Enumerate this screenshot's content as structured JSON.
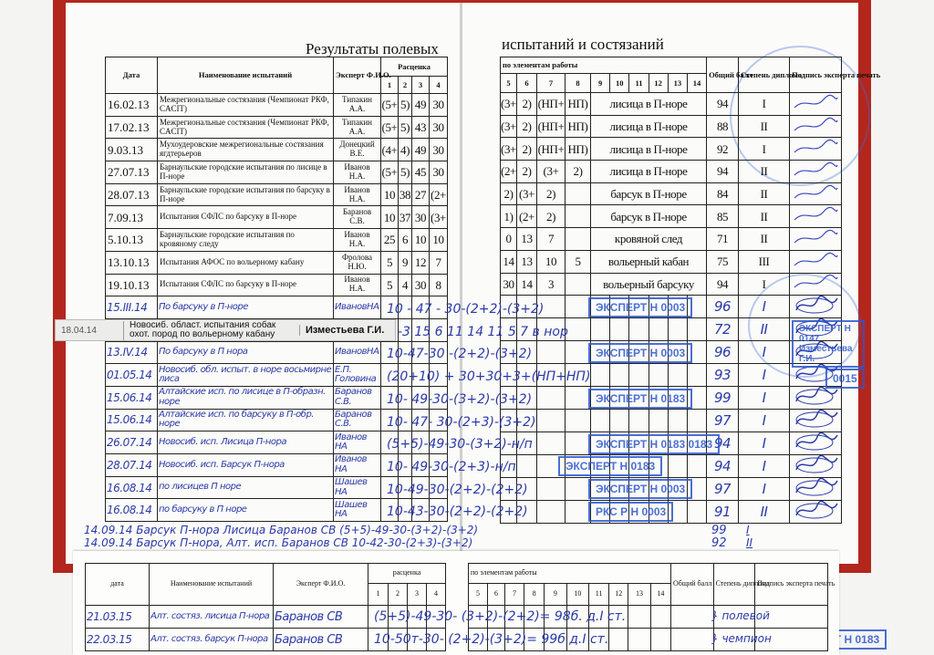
{
  "left_title": "Результаты полевых",
  "right_title": "испытаний и состязаний",
  "left_headers": {
    "date": "Дата",
    "name": "Наименование испытаний",
    "expert": "Эксперт Ф.И.О.",
    "rating": "Расценка",
    "cols": [
      "1",
      "2",
      "3",
      "4"
    ]
  },
  "right_headers": {
    "elements": "по элементам работы",
    "cols": [
      "5",
      "6",
      "7",
      "8",
      "9",
      "10",
      "11",
      "12",
      "13",
      "14"
    ],
    "total": "Общий балл",
    "diploma": "Степень диплома",
    "signature": "Подпись эксперта печать"
  },
  "printed_rows": [
    {
      "date": "16.02.13",
      "name": "Межрегиональные состязания (Чемпионат РКФ, CACIT)",
      "expert": "Типакин А.А.",
      "r": [
        "(5+",
        "5)",
        "49",
        "30"
      ],
      "e": [
        "(3+",
        "2)",
        "(НП+",
        "НП)"
      ],
      "work": "лисица в П-норе",
      "total": "94",
      "diploma": "I"
    },
    {
      "date": "17.02.13",
      "name": "Межрегиональные состязания (Чемпионат РКФ, CACIT)",
      "expert": "Типакин А.А.",
      "r": [
        "(5+",
        "5)",
        "43",
        "30"
      ],
      "e": [
        "(3+",
        "2)",
        "(НП+",
        "НП)"
      ],
      "work": "лисица в П-норе",
      "total": "88",
      "diploma": "II"
    },
    {
      "date": "9.03.13",
      "name": "Мухоудеровские межрегиональные состязания ягдтерьеров",
      "expert": "Донецкий В.Е.",
      "r": [
        "(4+",
        "4)",
        "49",
        "30"
      ],
      "e": [
        "(3+",
        "2)",
        "(НП+",
        "НП)"
      ],
      "work": "лисица в П-норе",
      "total": "92",
      "diploma": "I"
    },
    {
      "date": "27.07.13",
      "name": "Барнаульские городские испытания по лисице в П-норе",
      "expert": "Иванов Н.А.",
      "r": [
        "(5+",
        "5)",
        "45",
        "30"
      ],
      "e": [
        "(2+",
        "2)",
        "(3+",
        "2)"
      ],
      "work": "лисица в П-норе",
      "total": "94",
      "diploma": "II"
    },
    {
      "date": "28.07.13",
      "name": "Барнаульские городские испытания по барсуку в П-норе",
      "expert": "Иванов Н.А.",
      "r": [
        "10",
        "38",
        "27",
        "(2+"
      ],
      "e": [
        "2)",
        "(3+",
        "2)",
        ""
      ],
      "work": "барсук в П-норе",
      "total": "84",
      "diploma": "II"
    },
    {
      "date": "7.09.13",
      "name": "Испытания СФЛС по барсуку в П-норе",
      "expert": "Баранов С.В.",
      "r": [
        "10",
        "37",
        "30",
        "(3+"
      ],
      "e": [
        "1)",
        "(2+",
        "2)",
        ""
      ],
      "work": "барсук в П-норе",
      "total": "85",
      "diploma": "II"
    },
    {
      "date": "5.10.13",
      "name": "Барнаульские городские испытания по кровяному следу",
      "expert": "Иванов Н.А.",
      "r": [
        "25",
        "6",
        "10",
        "10"
      ],
      "e": [
        "0",
        "13",
        "7",
        ""
      ],
      "work": "кровяной след",
      "total": "71",
      "diploma": "II"
    },
    {
      "date": "13.10.13",
      "name": "Испытания АФОС по вольерному кабану",
      "expert": "Фролова Н.Ю.",
      "r": [
        "5",
        "9",
        "12",
        "7"
      ],
      "e": [
        "14",
        "13",
        "10",
        "5"
      ],
      "work": "вольерный кабан",
      "total": "75",
      "diploma": "III"
    },
    {
      "date": "19.10.13",
      "name": "Испытания СФЛС по барсуку в П-норе",
      "expert": "Иванов Н.А.",
      "r": [
        "5",
        "4",
        "30",
        "8"
      ],
      "e": [
        "30",
        "14",
        "3",
        ""
      ],
      "work": "вольерный барсуку",
      "total": "94",
      "diploma": "I"
    }
  ],
  "handwritten_rows": [
    {
      "date": "15.III.14",
      "name": "По барсуку в П-норе",
      "expert": "ИвановНА",
      "scores": "10 - 47 - 30-(2+2)-(3+2)",
      "total": "96",
      "diploma": "I"
    },
    {
      "date": "",
      "name": "",
      "expert": "",
      "scores": "-3 15 6  11 14 11  5  7  в нор",
      "total": "72",
      "diploma": "II"
    },
    {
      "date": "13.IV.14",
      "name": "По барсуку в П нора",
      "expert": "ИвановНА",
      "scores": "10-47-30 -(2+2)-(3+2)",
      "total": "96",
      "diploma": "I"
    },
    {
      "date": "01.05.14",
      "name": "Новосиб. обл. испыт. в норе восьмирне лиса",
      "expert": "Е.П. Головина",
      "scores": "(20+10) + 30+30+3+(НП+НП)",
      "total": "93",
      "diploma": "I"
    },
    {
      "date": "15.06.14",
      "name": "Алтайские исп. по лисице в П-образн. норе",
      "expert": "Баранов С.В.",
      "scores": "10- 49-30-(3+2)-(3+2)",
      "total": "99",
      "diploma": "I"
    },
    {
      "date": "15.06.14",
      "name": "Алтайские исп. по барсуку в П-обр. норе",
      "expert": "Баранов С.В.",
      "scores": "10- 47- 30-(2+3)-(3+2)",
      "total": "97",
      "diploma": "I"
    },
    {
      "date": "26.07.14",
      "name": "Новосиб. исп. Лисица П-нора",
      "expert": "Иванов НА",
      "scores": "(5+5)-49-30-(3+2)-н/п",
      "total": "94",
      "diploma": "I"
    },
    {
      "date": "28.07.14",
      "name": "Новосиб. исп. Барсук П-нора",
      "expert": "Иванов НА",
      "scores": "10- 49-30-(2+3)-н/п",
      "total": "94",
      "diploma": "I"
    },
    {
      "date": "16.08.14",
      "name": "по лисицев П норе",
      "expert": "Шашев НА",
      "scores": "10-49-30-(2+2)-(2+2)",
      "total": "97",
      "diploma": "I"
    },
    {
      "date": "16.08.14",
      "name": "по барсуку в П норе",
      "expert": "Шашев НА",
      "scores": "10-43-30-(2+2)-(2+2)",
      "total": "91",
      "diploma": "II"
    }
  ],
  "pasted_label": {
    "date": "18.04.14",
    "name": "Новосиб. област. испытания собак охот. пород по вольерному кабану",
    "expert": "Изместьева Г.И."
  },
  "free_lines": [
    {
      "text": "14.09.14 Барсук П-нора Лисица Баранов СВ (5+5)-49-30-(3+2)-(3+2)",
      "total": "99",
      "diploma": "I"
    },
    {
      "text": "14.09.14 Барсук П-нора, Алт. исп. Баранов СВ 10-42-30-(2+3)-(3+2)",
      "total": "92",
      "diploma": "II"
    }
  ],
  "stamps": [
    "ЭКСПЕРТ Н 0003",
    "ЭКСПЕРТ Н 0147 Изместьева Г.И.",
    "ЭКСПЕРТ Н 0003",
    "0015",
    "ЭКСПЕРТ Н 0183",
    "ЭКСПЕРТ Н 0003",
    "РКС Р Н 0003",
    "ЭКСПЕРТ Н 0183 0183",
    "ЭКСПЕРТ Н 0183",
    "ЭКСПЕРТ Н 0183"
  ],
  "sheet": {
    "headers": {
      "date": "дата",
      "name": "Наименование испытаний",
      "expert": "Эксперт Ф.И.О.",
      "rating": "расценка",
      "elements": "по элементам работы",
      "total": "Общий балл",
      "diploma": "Степень диплома",
      "signature": "Подпись эксперта печать"
    },
    "rows": [
      {
        "date": "21.03.15",
        "name": "Алт. состяз. лисица П-нора",
        "expert": "Баранов СВ",
        "scores": "(5+5)-49-30-  (3+2)-(2+2)= 98б. д.I ст.",
        "note": "} полевой"
      },
      {
        "date": "22.03.15",
        "name": "Алт. состяз. барсук П-нора",
        "expert": "Баранов СВ",
        "scores": "10-50т-30-  (2+2)-(3+2)= 99б д.I ст.",
        "note": "} чемпион"
      }
    ]
  },
  "colors": {
    "ink": "#2b3aa8",
    "stamp": "#2d57d0",
    "cover": "#b3261e"
  }
}
